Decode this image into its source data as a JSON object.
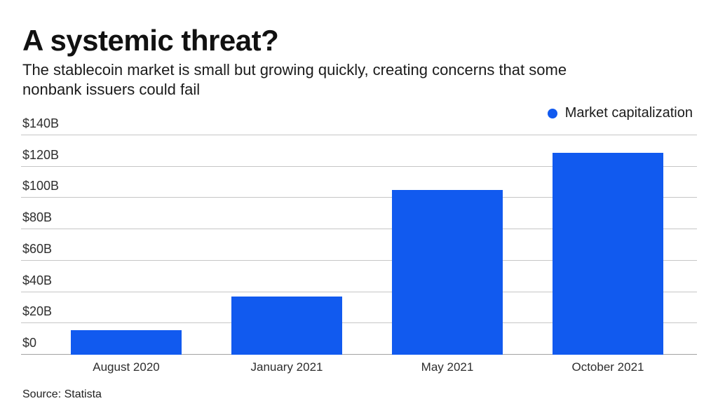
{
  "header": {
    "title": "A systemic threat?",
    "subtitle_lines": [
      "The stablecoin market is small but growing quickly, creating concerns that some",
      "nonbank issuers could fail"
    ]
  },
  "legend": {
    "label": "Market capitalization",
    "marker_color": "#115AEF"
  },
  "source": "Source: Statista",
  "chart_data": {
    "type": "bar",
    "title": "A systemic threat?",
    "subtitle": "The stablecoin market is small but growing quickly, creating concerns that some nonbank issuers could fail",
    "categories": [
      "August 2020",
      "January 2021",
      "May 2021",
      "October 2021"
    ],
    "series": [
      {
        "name": "Market capitalization",
        "values": [
          15.5,
          37,
          105,
          129
        ]
      }
    ],
    "unit": "billions of USD",
    "bar_color": "#115AEF",
    "xlabel": "",
    "ylabel": "",
    "ylim": [
      0,
      140
    ],
    "ytick_interval": 20,
    "ytick_labels": [
      "$0",
      "$20B",
      "$40B",
      "$60B",
      "$80B",
      "$100B",
      "$120B",
      "$140B"
    ],
    "grid": true,
    "gridline_color": "#c6c6c6",
    "axis_line_color": "#a2a2a2",
    "legend_position": "top-right",
    "source": "Source: Statista"
  }
}
